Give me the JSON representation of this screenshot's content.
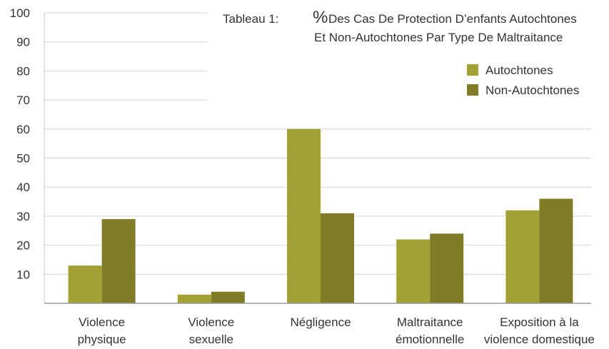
{
  "chart_data": {
    "type": "bar",
    "title_prefix": "Tableau 1:",
    "title_symbol": "%",
    "title_line1": "Des Cas De Protection D’enfants Autochtones",
    "title_line2": "Et Non-Autochtones Par Type De Maltraitance",
    "categories": [
      [
        "Violence",
        "physique"
      ],
      [
        "Violence",
        "sexuelle"
      ],
      [
        "Négligence"
      ],
      [
        "Maltraitance",
        "émotionnelle"
      ],
      [
        "Exposition à la",
        "violence domestique"
      ]
    ],
    "series": [
      {
        "name": "Autochtones",
        "color": "#a3a034",
        "values": [
          13,
          3,
          60,
          22,
          32
        ]
      },
      {
        "name": "Non-Autochtones",
        "color": "#807c28",
        "values": [
          29,
          4,
          31,
          24,
          36
        ]
      }
    ],
    "yticks": [
      10,
      20,
      30,
      40,
      50,
      60,
      70,
      80,
      90,
      100
    ],
    "ylim": [
      0,
      100
    ],
    "legend_position": "top-right",
    "grid": "horizontal"
  }
}
